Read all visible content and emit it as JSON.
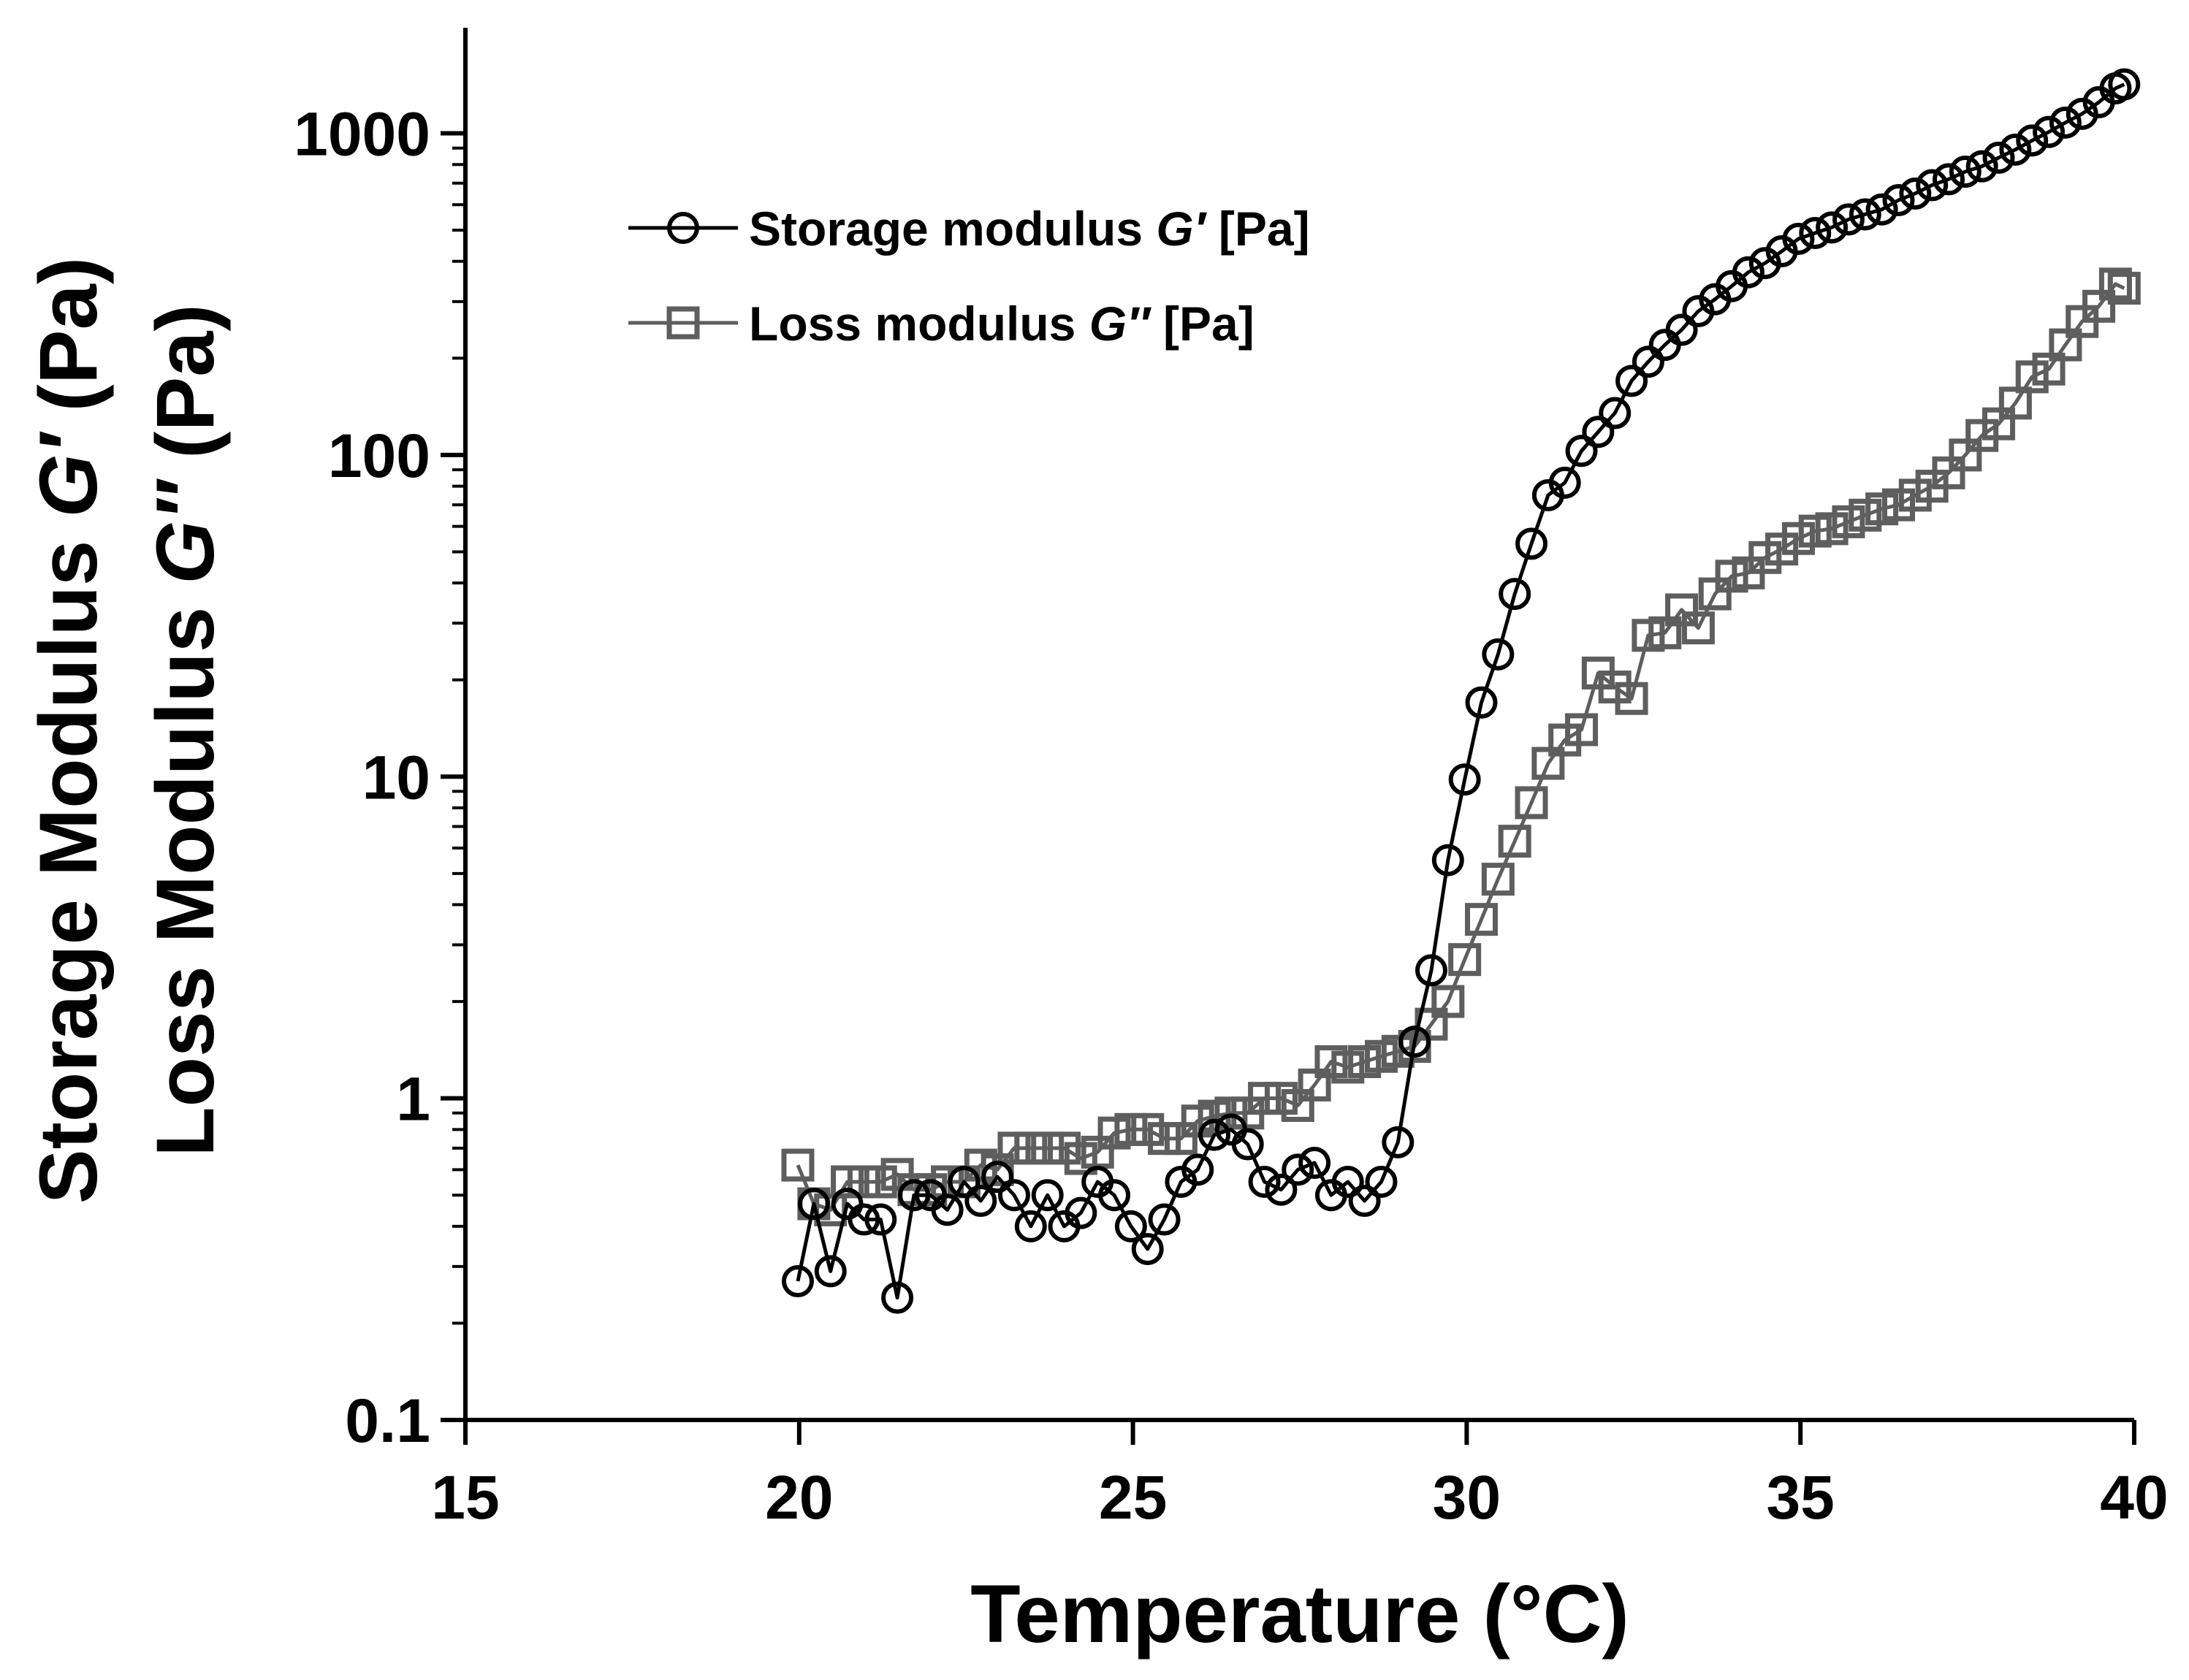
{
  "chart_data": {
    "type": "line",
    "title": "",
    "xlabel": "Temperature (°C)",
    "ylabel_line1_prefix": "Storage Modulus ",
    "ylabel_line1_symbol": "G′",
    "ylabel_line1_suffix": " (Pa)",
    "ylabel_line2_prefix": "Loss Modulus ",
    "ylabel_line2_symbol": "G″",
    "ylabel_line2_suffix": " (Pa)",
    "xlim": [
      15,
      40
    ],
    "ylim": [
      0.1,
      2000
    ],
    "yscale": "log",
    "x_ticks": [
      15,
      20,
      25,
      30,
      35,
      40
    ],
    "x_tick_labels": [
      "15",
      "20",
      "25",
      "30",
      "35",
      "40"
    ],
    "y_ticks": [
      0.1,
      1,
      10,
      100,
      1000
    ],
    "y_tick_labels": [
      "0.1",
      "1",
      "10",
      "100",
      "1000"
    ],
    "legend_position": "top-left",
    "series": [
      {
        "name": "Storage modulus G′ [Pa]",
        "legend_prefix": "Storage modulus ",
        "legend_symbol": "G′",
        "legend_suffix": " [Pa]",
        "marker": "circle",
        "color": "#000000",
        "x": [
          19.98,
          20.22,
          20.47,
          20.72,
          20.97,
          21.22,
          21.47,
          21.72,
          21.97,
          22.22,
          22.47,
          22.72,
          22.97,
          23.22,
          23.47,
          23.72,
          23.97,
          24.22,
          24.47,
          24.72,
          24.97,
          25.22,
          25.47,
          25.72,
          25.97,
          26.22,
          26.47,
          26.72,
          26.97,
          27.22,
          27.47,
          27.72,
          27.97,
          28.22,
          28.47,
          28.72,
          28.97,
          29.22,
          29.47,
          29.72,
          29.97,
          30.22,
          30.47,
          30.72,
          30.97,
          31.22,
          31.47,
          31.72,
          31.97,
          32.22,
          32.47,
          32.72,
          32.97,
          33.22,
          33.47,
          33.72,
          33.97,
          34.22,
          34.47,
          34.72,
          34.97,
          35.22,
          35.47,
          35.72,
          35.97,
          36.22,
          36.47,
          36.72,
          36.97,
          37.22,
          37.47,
          37.72,
          37.97,
          38.22,
          38.47,
          38.72,
          38.97,
          39.22,
          39.47,
          39.72,
          39.85
        ],
        "values": [
          0.27,
          0.47,
          0.29,
          0.47,
          0.42,
          0.42,
          0.24,
          0.5,
          0.5,
          0.45,
          0.55,
          0.48,
          0.57,
          0.5,
          0.4,
          0.5,
          0.4,
          0.44,
          0.55,
          0.5,
          0.4,
          0.34,
          0.42,
          0.55,
          0.6,
          0.77,
          0.8,
          0.72,
          0.55,
          0.52,
          0.6,
          0.63,
          0.5,
          0.55,
          0.48,
          0.55,
          0.73,
          1.5,
          2.5,
          5.5,
          9.8,
          17,
          24,
          37,
          53,
          75,
          82,
          103,
          118,
          135,
          170,
          195,
          220,
          245,
          280,
          305,
          335,
          370,
          395,
          430,
          470,
          490,
          510,
          540,
          560,
          580,
          620,
          650,
          690,
          720,
          760,
          790,
          840,
          890,
          950,
          1010,
          1080,
          1150,
          1250,
          1380,
          1420
        ]
      },
      {
        "name": "Loss modulus G″ [Pa]",
        "legend_prefix": "Loss modulus ",
        "legend_symbol": "G″",
        "legend_suffix": " [Pa]",
        "marker": "square",
        "color": "#5e5e5e",
        "x": [
          19.98,
          20.22,
          20.47,
          20.72,
          20.97,
          21.22,
          21.47,
          21.72,
          21.97,
          22.22,
          22.47,
          22.72,
          22.97,
          23.22,
          23.47,
          23.72,
          23.97,
          24.22,
          24.47,
          24.72,
          24.97,
          25.22,
          25.47,
          25.72,
          25.97,
          26.22,
          26.47,
          26.72,
          26.97,
          27.22,
          27.47,
          27.72,
          27.97,
          28.22,
          28.47,
          28.72,
          28.97,
          29.22,
          29.47,
          29.72,
          29.97,
          30.22,
          30.47,
          30.72,
          30.97,
          31.22,
          31.47,
          31.72,
          31.97,
          32.22,
          32.47,
          32.72,
          32.97,
          33.22,
          33.47,
          33.72,
          33.97,
          34.22,
          34.47,
          34.72,
          34.97,
          35.22,
          35.47,
          35.72,
          35.97,
          36.22,
          36.47,
          36.72,
          36.97,
          37.22,
          37.47,
          37.72,
          37.97,
          38.22,
          38.47,
          38.72,
          38.97,
          39.22,
          39.47,
          39.72,
          39.85
        ],
        "values": [
          0.62,
          0.47,
          0.45,
          0.55,
          0.55,
          0.55,
          0.58,
          0.52,
          0.52,
          0.55,
          0.55,
          0.62,
          0.6,
          0.7,
          0.7,
          0.7,
          0.7,
          0.65,
          0.68,
          0.78,
          0.8,
          0.8,
          0.75,
          0.75,
          0.85,
          0.88,
          0.9,
          0.9,
          1.0,
          1.0,
          0.95,
          1.1,
          1.3,
          1.25,
          1.3,
          1.35,
          1.4,
          1.45,
          1.7,
          2.0,
          2.7,
          3.6,
          4.8,
          6.3,
          8.3,
          11,
          13,
          14,
          21,
          19,
          17.5,
          27.5,
          28,
          33,
          29,
          37,
          42,
          43,
          48,
          51,
          55,
          58,
          59,
          62,
          65,
          68,
          70,
          75,
          80,
          88,
          100,
          115,
          125,
          145,
          175,
          185,
          220,
          260,
          290,
          340,
          330
        ]
      }
    ]
  }
}
